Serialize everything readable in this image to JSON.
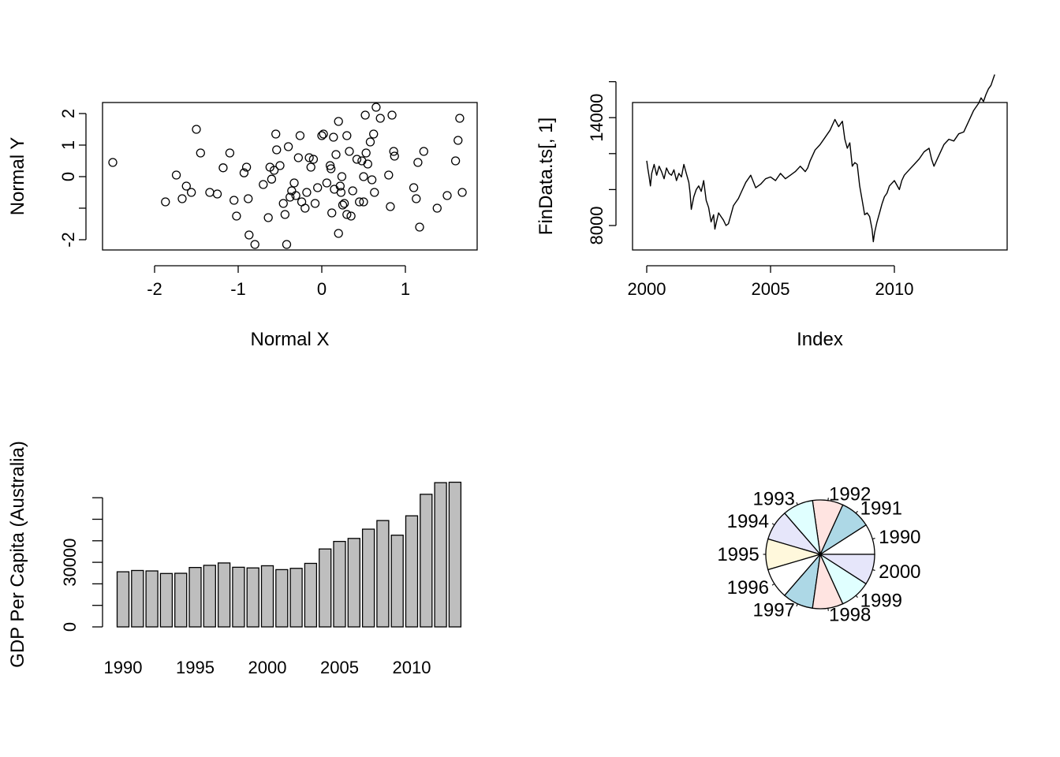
{
  "chart_data": [
    {
      "type": "scatter",
      "xlabel": "Normal X",
      "ylabel": "Normal Y",
      "xlim": [
        -2.6,
        1.9
      ],
      "ylim": [
        -2.3,
        2.4
      ],
      "xticks": [
        -2,
        -1,
        0,
        1
      ],
      "yticks": [
        -2,
        0,
        1,
        2
      ],
      "ytick_labels": [
        "-2",
        "0",
        "1",
        "2"
      ],
      "xtick_labels": [
        "-2",
        "-1",
        "0",
        "1"
      ],
      "points": [
        [
          -2.5,
          0.45
        ],
        [
          -1.87,
          -0.8
        ],
        [
          -1.74,
          0.05
        ],
        [
          -1.67,
          -0.7
        ],
        [
          -1.62,
          -0.3
        ],
        [
          -1.56,
          -0.5
        ],
        [
          -1.5,
          1.5
        ],
        [
          -1.45,
          0.75
        ],
        [
          -1.34,
          -0.5
        ],
        [
          -1.25,
          -0.55
        ],
        [
          -1.18,
          0.28
        ],
        [
          -1.1,
          0.75
        ],
        [
          -1.05,
          -0.75
        ],
        [
          -1.02,
          -1.25
        ],
        [
          -0.93,
          0.12
        ],
        [
          -0.9,
          0.3
        ],
        [
          -0.88,
          -0.7
        ],
        [
          -0.87,
          -1.85
        ],
        [
          -0.8,
          -2.15
        ],
        [
          -0.7,
          -0.25
        ],
        [
          -0.64,
          -1.3
        ],
        [
          -0.62,
          0.3
        ],
        [
          -0.6,
          -0.08
        ],
        [
          -0.57,
          0.2
        ],
        [
          -0.55,
          1.35
        ],
        [
          -0.54,
          0.85
        ],
        [
          -0.5,
          0.35
        ],
        [
          -0.46,
          -0.85
        ],
        [
          -0.44,
          -1.2
        ],
        [
          -0.42,
          -2.15
        ],
        [
          -0.4,
          0.95
        ],
        [
          -0.38,
          -0.65
        ],
        [
          -0.36,
          -0.45
        ],
        [
          -0.33,
          -0.2
        ],
        [
          -0.31,
          -0.6
        ],
        [
          -0.28,
          0.6
        ],
        [
          -0.26,
          1.3
        ],
        [
          -0.24,
          -0.8
        ],
        [
          -0.2,
          -1.0
        ],
        [
          -0.18,
          -0.5
        ],
        [
          -0.15,
          0.6
        ],
        [
          -0.13,
          0.3
        ],
        [
          -0.1,
          0.55
        ],
        [
          -0.08,
          -0.85
        ],
        [
          -0.05,
          -0.35
        ],
        [
          0.0,
          1.3
        ],
        [
          0.02,
          1.35
        ],
        [
          0.06,
          -0.2
        ],
        [
          0.1,
          0.35
        ],
        [
          0.11,
          0.25
        ],
        [
          0.12,
          -1.15
        ],
        [
          0.14,
          1.25
        ],
        [
          0.15,
          -0.4
        ],
        [
          0.17,
          0.7
        ],
        [
          0.2,
          1.75
        ],
        [
          0.2,
          -1.8
        ],
        [
          0.22,
          -0.3
        ],
        [
          0.23,
          -0.5
        ],
        [
          0.24,
          0.0
        ],
        [
          0.25,
          -0.9
        ],
        [
          0.27,
          -0.85
        ],
        [
          0.3,
          1.3
        ],
        [
          0.3,
          -1.2
        ],
        [
          0.33,
          0.8
        ],
        [
          0.35,
          -1.25
        ],
        [
          0.37,
          -0.45
        ],
        [
          0.42,
          0.55
        ],
        [
          0.45,
          -0.8
        ],
        [
          0.48,
          0.5
        ],
        [
          0.5,
          0.0
        ],
        [
          0.5,
          -0.8
        ],
        [
          0.52,
          1.95
        ],
        [
          0.53,
          0.75
        ],
        [
          0.55,
          0.4
        ],
        [
          0.58,
          1.1
        ],
        [
          0.6,
          -0.1
        ],
        [
          0.62,
          1.35
        ],
        [
          0.63,
          -0.5
        ],
        [
          0.65,
          2.2
        ],
        [
          0.7,
          1.85
        ],
        [
          0.8,
          0.05
        ],
        [
          0.82,
          -0.95
        ],
        [
          0.84,
          1.95
        ],
        [
          0.86,
          0.8
        ],
        [
          0.87,
          0.65
        ],
        [
          1.1,
          -0.35
        ],
        [
          1.13,
          -0.7
        ],
        [
          1.15,
          0.45
        ],
        [
          1.17,
          -1.6
        ],
        [
          1.22,
          0.8
        ],
        [
          1.38,
          -1.0
        ],
        [
          1.5,
          -0.6
        ],
        [
          1.6,
          0.5
        ],
        [
          1.63,
          1.15
        ],
        [
          1.65,
          1.85
        ],
        [
          1.68,
          -0.5
        ]
      ]
    },
    {
      "type": "line",
      "xlabel": "Index",
      "ylabel": "FinData.ts[, 1]",
      "xlim": [
        1999.45,
        2014.6
      ],
      "ylim": [
        6300,
        16700
      ],
      "xticks": [
        2000,
        2005,
        2010
      ],
      "xtick_labels": [
        "2000",
        "2005",
        "2010"
      ],
      "yticks": [
        8000,
        14000
      ],
      "ytick_labels": [
        "8000",
        "14000"
      ],
      "minor_yticks": [
        10000,
        12000,
        16000
      ],
      "series": [
        {
          "x": [
            2000.0,
            2000.05,
            2000.1,
            2000.15,
            2000.2,
            2000.3,
            2000.4,
            2000.5,
            2000.6,
            2000.7,
            2000.8,
            2000.9,
            2001.0,
            2001.1,
            2001.2,
            2001.3,
            2001.4,
            2001.5,
            2001.6,
            2001.7,
            2001.75,
            2001.8,
            2001.9,
            2002.0,
            2002.1,
            2002.2,
            2002.3,
            2002.4,
            2002.5,
            2002.6,
            2002.7,
            2002.75,
            2002.8,
            2002.9,
            2003.0,
            2003.1,
            2003.2,
            2003.3,
            2003.4,
            2003.5,
            2003.6,
            2003.7,
            2003.8,
            2004.0,
            2004.2,
            2004.4,
            2004.6,
            2004.8,
            2005.0,
            2005.2,
            2005.4,
            2005.6,
            2005.8,
            2006.0,
            2006.2,
            2006.4,
            2006.5,
            2006.6,
            2006.8,
            2007.0,
            2007.2,
            2007.4,
            2007.6,
            2007.75,
            2007.9,
            2008.0,
            2008.1,
            2008.2,
            2008.3,
            2008.4,
            2008.5,
            2008.6,
            2008.7,
            2008.8,
            2008.9,
            2009.0,
            2009.1,
            2009.15,
            2009.2,
            2009.3,
            2009.4,
            2009.5,
            2009.6,
            2009.7,
            2009.8,
            2010.0,
            2010.2,
            2010.3,
            2010.4,
            2010.6,
            2010.8,
            2011.0,
            2011.2,
            2011.4,
            2011.5,
            2011.6,
            2011.8,
            2012.0,
            2012.2,
            2012.4,
            2012.6,
            2012.8,
            2013.0,
            2013.2,
            2013.4,
            2013.5,
            2013.6,
            2013.7,
            2013.8,
            2013.9,
            2014.0,
            2014.05
          ],
          "y": [
            11600,
            11100,
            10700,
            10200,
            10900,
            11400,
            10800,
            11300,
            11000,
            10600,
            11200,
            10900,
            10800,
            11100,
            10500,
            10900,
            10700,
            11400,
            10900,
            10400,
            9800,
            8900,
            9600,
            10000,
            10200,
            9900,
            10500,
            9400,
            9000,
            8200,
            8600,
            7800,
            8100,
            8700,
            8500,
            8300,
            8000,
            8100,
            8600,
            9100,
            9300,
            9500,
            9800,
            10400,
            10800,
            10100,
            10300,
            10600,
            10700,
            10500,
            10900,
            10600,
            10800,
            11000,
            11300,
            11000,
            11200,
            11600,
            12200,
            12500,
            12900,
            13300,
            13900,
            13500,
            13800,
            12800,
            12300,
            12600,
            11300,
            11500,
            11400,
            10200,
            9400,
            8600,
            8700,
            8500,
            7800,
            7100,
            7600,
            8200,
            8700,
            9200,
            9600,
            9800,
            10200,
            10500,
            10000,
            10500,
            10800,
            11100,
            11400,
            11700,
            12100,
            12300,
            11700,
            11300,
            11900,
            12500,
            12800,
            12700,
            13100,
            13200,
            13800,
            14400,
            14800,
            15100,
            14900,
            15300,
            15600,
            15800,
            16200,
            16400
          ]
        }
      ]
    },
    {
      "type": "bar",
      "xlabel": "",
      "ylabel": "GDP Per Capita (Australia)",
      "ylim": [
        0,
        70000
      ],
      "yticks": [
        0,
        30000
      ],
      "ytick_labels": [
        "0",
        "30000"
      ],
      "minor_yticks": [
        10000,
        20000,
        40000,
        50000,
        60000
      ],
      "xtick_labels": [
        "1990",
        "1995",
        "2000",
        "2005",
        "2010"
      ],
      "categories": [
        "1990",
        "1991",
        "1992",
        "1993",
        "1994",
        "1995",
        "1996",
        "1997",
        "1998",
        "1999",
        "2000",
        "2001",
        "2002",
        "2003",
        "2004",
        "2005",
        "2006",
        "2007",
        "2008",
        "2009",
        "2010",
        "2011",
        "2012",
        "2013"
      ],
      "values": [
        25600,
        26200,
        26000,
        24800,
        24900,
        27600,
        28600,
        29700,
        27700,
        27400,
        28400,
        26600,
        27200,
        29500,
        36200,
        39700,
        41100,
        45400,
        49400,
        42600,
        51600,
        61600,
        67000,
        67200
      ]
    },
    {
      "type": "pie",
      "labels": [
        "1990",
        "1991",
        "1992",
        "1993",
        "1994",
        "1995",
        "1996",
        "1997",
        "1998",
        "1999",
        "2000"
      ],
      "values": [
        1,
        1,
        1,
        1,
        1,
        1,
        1,
        1,
        1,
        1,
        1
      ],
      "colors": [
        "#ffffff",
        "#add8e6",
        "#ffe4e1",
        "#e0ffff",
        "#e6e6fa",
        "#fff8dc",
        "#ffffff",
        "#add8e6",
        "#ffe4e1",
        "#e0ffff",
        "#e6e6fa"
      ]
    }
  ]
}
